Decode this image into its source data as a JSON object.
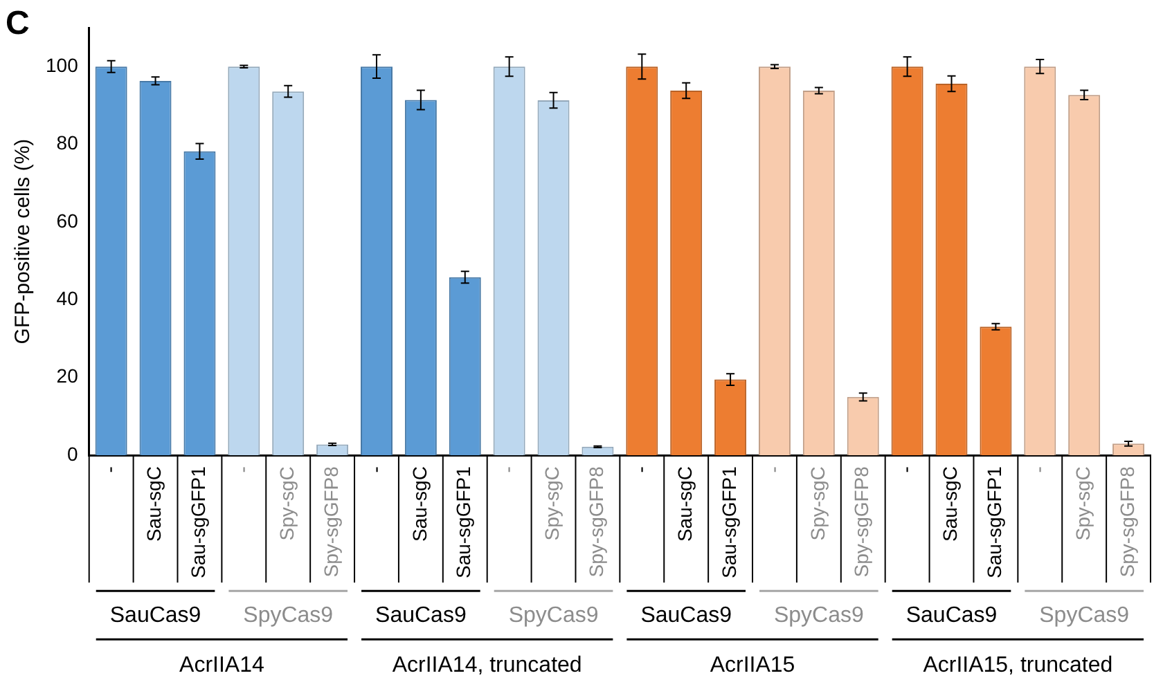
{
  "chart_data": {
    "type": "bar",
    "ylabel": "GFP-positive cells (%)",
    "categories": [
      "-",
      "Sau-sgC",
      "Sau-sgGFP1",
      "-",
      "Spy-sgC",
      "Spy-sgGFP8",
      "-",
      "Sau-sgC",
      "Sau-sgGFP1",
      "-",
      "Spy-sgC",
      "Spy-sgGFP8",
      "-",
      "Sau-sgC",
      "Sau-sgGFP1",
      "-",
      "Spy-sgC",
      "Spy-sgGFP8",
      "-",
      "Sau-sgC",
      "Sau-sgGFP1",
      "-",
      "Spy-sgC",
      "Spy-sgGFP8"
    ],
    "values": [
      100,
      96.3,
      78.2,
      100,
      93.6,
      2.8,
      100,
      91.4,
      45.8,
      100,
      91.3,
      2.2,
      100,
      93.8,
      19.5,
      100,
      93.8,
      15,
      100,
      95.6,
      33.1,
      100,
      92.7,
      3
    ],
    "errors": [
      1.5,
      1,
      2,
      0.3,
      1.5,
      0.3,
      3,
      2.5,
      1.5,
      2.5,
      2,
      0.2,
      3.2,
      2,
      1.5,
      0.5,
      0.8,
      1,
      2.5,
      2,
      0.8,
      1.8,
      1.2,
      0.6
    ],
    "colors": [
      "#5b9bd5",
      "#5b9bd5",
      "#5b9bd5",
      "#bdd7ee",
      "#bdd7ee",
      "#bdd7ee",
      "#5b9bd5",
      "#5b9bd5",
      "#5b9bd5",
      "#bdd7ee",
      "#bdd7ee",
      "#bdd7ee",
      "#ed7d31",
      "#ed7d31",
      "#ed7d31",
      "#f8cbad",
      "#f8cbad",
      "#f8cbad",
      "#ed7d31",
      "#ed7d31",
      "#ed7d31",
      "#f8cbad",
      "#f8cbad",
      "#f8cbad"
    ],
    "ylim": [
      0,
      110
    ],
    "yticks": [
      0,
      20,
      40,
      60,
      80,
      100
    ],
    "grid": false,
    "legend": false,
    "annotations": [
      "C",
      "SauCas9",
      "SpyCas9",
      "SauCas9",
      "SpyCas9",
      "SauCas9",
      "SpyCas9",
      "SauCas9",
      "SpyCas9",
      "AcrIIA14",
      "AcrIIA14, truncated",
      "AcrIIA15",
      "AcrIIA15, truncated"
    ]
  }
}
